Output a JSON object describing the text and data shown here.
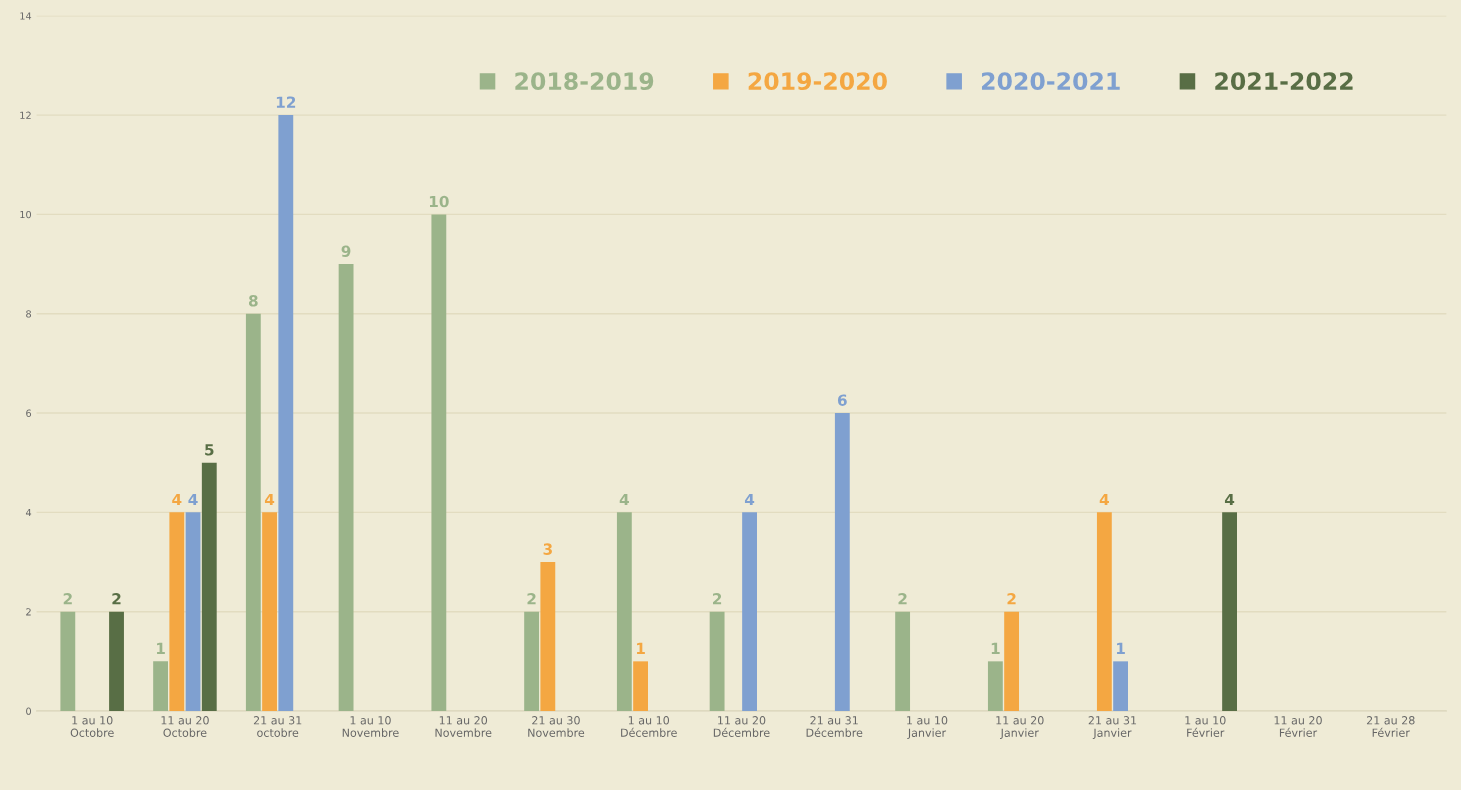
{
  "chart_data": {
    "type": "bar",
    "categories": [
      "1 au 10\nOctobre",
      "11 au 20\nOctobre",
      "21 au 31\noctobre",
      "1 au 10\nNovembre",
      "11 au 20\nNovembre",
      "21 au 30\nNovembre",
      "1 au 10\nDécembre",
      "11 au 20\nDécembre",
      "21 au 31\nDécembre",
      "1 au 10\nJanvier",
      "11 au 20\nJanvier",
      "21 au 31\nJanvier",
      "1 au 10\nFévrier",
      "11 au 20\nFévrier",
      "21 au 28\nFévrier"
    ],
    "series": [
      {
        "name": "2018-2019",
        "color": "#9bb48a",
        "values": [
          2,
          1,
          8,
          9,
          10,
          2,
          4,
          2,
          null,
          2,
          1,
          null,
          null,
          null,
          null
        ]
      },
      {
        "name": "2019-2020",
        "color": "#f4a742",
        "values": [
          null,
          4,
          4,
          null,
          null,
          3,
          1,
          null,
          null,
          null,
          2,
          4,
          null,
          null,
          null
        ]
      },
      {
        "name": "2020-2021",
        "color": "#7fa0d0",
        "values": [
          null,
          4,
          12,
          null,
          null,
          null,
          null,
          4,
          6,
          null,
          null,
          1,
          null,
          null,
          null
        ]
      },
      {
        "name": "2021-2022",
        "color": "#586e45",
        "values": [
          2,
          5,
          null,
          null,
          null,
          null,
          null,
          null,
          null,
          null,
          null,
          null,
          4,
          null,
          null
        ]
      }
    ],
    "ylim": [
      0,
      14
    ],
    "yticks": [
      0,
      2,
      4,
      6,
      8,
      10,
      12,
      14
    ],
    "grid": "y",
    "legend": "top right",
    "data_labels": true
  }
}
